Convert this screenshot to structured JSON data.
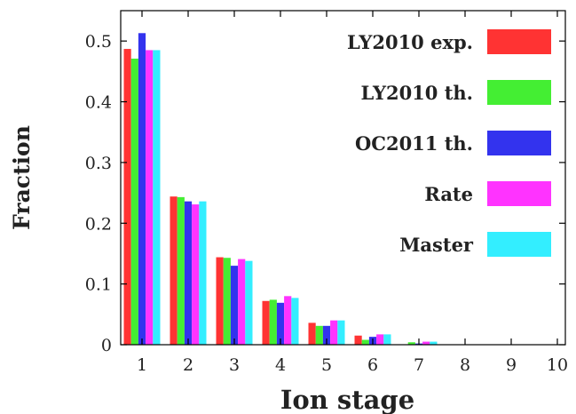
{
  "chart_data": {
    "type": "bar",
    "xlabel": "Ion stage",
    "ylabel": "Fraction",
    "ylim": [
      0,
      0.55
    ],
    "yticks": [
      "0",
      "0.1",
      "0.2",
      "0.3",
      "0.4",
      "0.5"
    ],
    "categories": [
      "1",
      "2",
      "3",
      "4",
      "5",
      "6",
      "7",
      "8",
      "9",
      "10"
    ],
    "legend_position": "top-right",
    "grid": false,
    "series": [
      {
        "name": "LY2010 exp.",
        "color": "#ff3333",
        "values": [
          0.487,
          0.244,
          0.144,
          0.072,
          0.036,
          0.015,
          0.0,
          0.0,
          0.0,
          0.0
        ]
      },
      {
        "name": "LY2010 th.",
        "color": "#44ee33",
        "values": [
          0.471,
          0.243,
          0.143,
          0.074,
          0.031,
          0.008,
          0.004,
          0.0,
          0.0,
          0.0
        ]
      },
      {
        "name": "OC2011 th.",
        "color": "#3333ee",
        "values": [
          0.513,
          0.236,
          0.13,
          0.069,
          0.031,
          0.013,
          0.002,
          0.0,
          0.0,
          0.0
        ]
      },
      {
        "name": "Rate",
        "color": "#ff33ff",
        "values": [
          0.485,
          0.231,
          0.141,
          0.08,
          0.04,
          0.017,
          0.005,
          0.0,
          0.0,
          0.0
        ]
      },
      {
        "name": "Master",
        "color": "#33eeff",
        "values": [
          0.485,
          0.236,
          0.138,
          0.077,
          0.04,
          0.017,
          0.005,
          0.0,
          0.0,
          0.0
        ]
      }
    ]
  }
}
